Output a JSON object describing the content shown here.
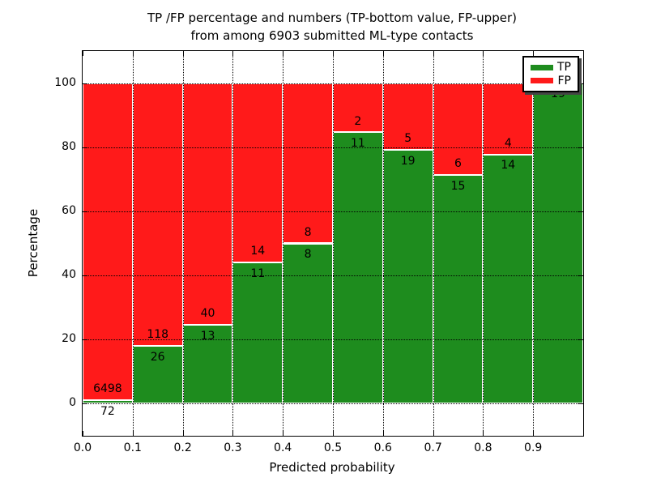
{
  "title": {
    "line1": "TP /FP percentage and numbers (TP-bottom value, FP-upper)",
    "line2": "from among 6903 submitted ML-type contacts"
  },
  "chart_data": {
    "type": "bar",
    "subtype": "stacked-percentage-histogram",
    "title": "TP /FP percentage and numbers (TP-bottom value, FP-upper) from among 6903 submitted ML-type contacts",
    "xlabel": "Predicted probability",
    "ylabel": "Percentage",
    "total_contacts": 6903,
    "bin_width": 0.1,
    "bin_starts": [
      0.0,
      0.1,
      0.2,
      0.3,
      0.4,
      0.5,
      0.6,
      0.7,
      0.8,
      0.9
    ],
    "series": [
      {
        "name": "TP",
        "color": "#1e8c1e",
        "counts": [
          72,
          26,
          13,
          11,
          8,
          11,
          19,
          15,
          14,
          19
        ]
      },
      {
        "name": "FP",
        "color": "#ff1a1a",
        "counts": [
          6498,
          118,
          40,
          14,
          8,
          2,
          5,
          6,
          4,
          0
        ]
      }
    ],
    "tp_percent_heights": [
      1.1,
      18.1,
      24.5,
      44.0,
      50.0,
      84.6,
      79.2,
      71.4,
      77.8,
      100.0
    ],
    "bar_edge_color": "#ffffff",
    "xlim": [
      0,
      1
    ],
    "ylim": [
      -10,
      110
    ],
    "xticks": [
      0.0,
      0.1,
      0.2,
      0.3,
      0.4,
      0.5,
      0.6,
      0.7,
      0.8,
      0.9
    ],
    "yticks": [
      0,
      20,
      40,
      60,
      80,
      100
    ],
    "grid": {
      "visible": true,
      "style": "dotted",
      "color": "#000000",
      "above_bars": true
    },
    "legend": {
      "position": "upper right",
      "entries": [
        "TP",
        "FP"
      ]
    },
    "annotation_note": "each bar labeled with TP count below segment top and FP count above segment top"
  }
}
